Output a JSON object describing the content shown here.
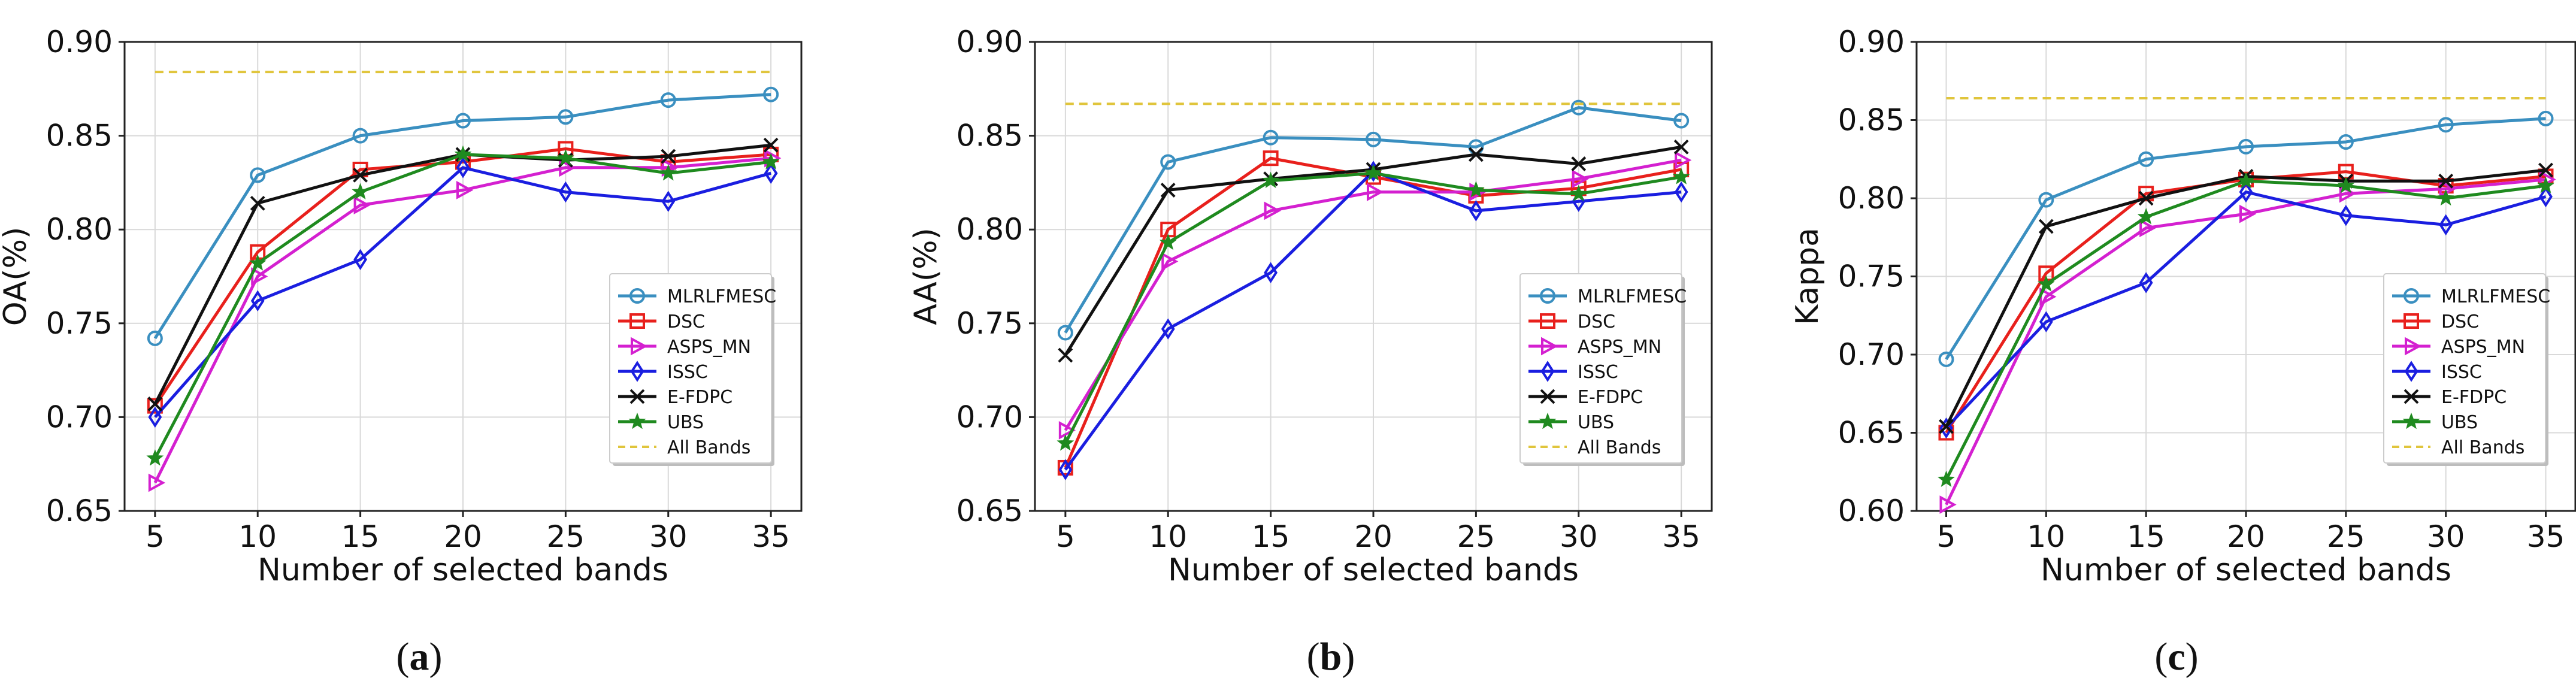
{
  "figure": {
    "series_styles": [
      {
        "name": "MLRLFMESC",
        "color": "#3a8fc0",
        "marker": "circle"
      },
      {
        "name": "DSC",
        "color": "#e8201c",
        "marker": "square"
      },
      {
        "name": "ASPS_MN",
        "color": "#d420d0",
        "marker": "tri-right"
      },
      {
        "name": "ISSC",
        "color": "#1a1ee0",
        "marker": "diamond"
      },
      {
        "name": "E-FDPC",
        "color": "#111111",
        "marker": "x"
      },
      {
        "name": "UBS",
        "color": "#1f8a1f",
        "marker": "star"
      },
      {
        "name": "All Bands",
        "color": "#e0c53c",
        "marker": "dashed"
      }
    ]
  },
  "chart_data": [
    {
      "type": "line",
      "caption": "(a)",
      "caption_letter": "a",
      "xlabel": "Number of selected bands",
      "ylabel": "OA(%)",
      "x": [
        5,
        10,
        15,
        20,
        25,
        30,
        35
      ],
      "x_ticks": [
        "5",
        "10",
        "15",
        "20",
        "25",
        "30",
        "35"
      ],
      "ylim": [
        0.65,
        0.9
      ],
      "y_ticks": [
        "0.65",
        "0.70",
        "0.75",
        "0.80",
        "0.85",
        "0.90"
      ],
      "grid": true,
      "legend_position": "lower-right",
      "series": [
        {
          "name": "MLRLFMESC",
          "values": [
            0.742,
            0.829,
            0.85,
            0.858,
            0.86,
            0.869,
            0.872
          ]
        },
        {
          "name": "DSC",
          "values": [
            0.706,
            0.788,
            0.832,
            0.836,
            0.843,
            0.836,
            0.84
          ]
        },
        {
          "name": "ASPS_MN",
          "values": [
            0.665,
            0.775,
            0.813,
            0.821,
            0.833,
            0.833,
            0.838
          ]
        },
        {
          "name": "ISSC",
          "values": [
            0.7,
            0.762,
            0.784,
            0.833,
            0.82,
            0.815,
            0.83
          ]
        },
        {
          "name": "E-FDPC",
          "values": [
            0.707,
            0.814,
            0.829,
            0.84,
            0.837,
            0.839,
            0.845
          ]
        },
        {
          "name": "UBS",
          "values": [
            0.678,
            0.782,
            0.82,
            0.84,
            0.838,
            0.83,
            0.836
          ]
        },
        {
          "name": "All Bands",
          "values": [
            0.884,
            0.884,
            0.884,
            0.884,
            0.884,
            0.884,
            0.884
          ]
        }
      ]
    },
    {
      "type": "line",
      "caption": "(b)",
      "caption_letter": "b",
      "xlabel": "Number of selected bands",
      "ylabel": "AA(%)",
      "x": [
        5,
        10,
        15,
        20,
        25,
        30,
        35
      ],
      "x_ticks": [
        "5",
        "10",
        "15",
        "20",
        "25",
        "30",
        "35"
      ],
      "ylim": [
        0.65,
        0.9
      ],
      "y_ticks": [
        "0.65",
        "0.70",
        "0.75",
        "0.80",
        "0.85",
        "0.90"
      ],
      "grid": true,
      "legend_position": "lower-right",
      "series": [
        {
          "name": "MLRLFMESC",
          "values": [
            0.745,
            0.836,
            0.849,
            0.848,
            0.844,
            0.865,
            0.858
          ]
        },
        {
          "name": "DSC",
          "values": [
            0.673,
            0.8,
            0.838,
            0.828,
            0.818,
            0.822,
            0.832
          ]
        },
        {
          "name": "ASPS_MN",
          "values": [
            0.693,
            0.783,
            0.81,
            0.82,
            0.82,
            0.827,
            0.837
          ]
        },
        {
          "name": "ISSC",
          "values": [
            0.672,
            0.747,
            0.777,
            0.831,
            0.81,
            0.815,
            0.82
          ]
        },
        {
          "name": "E-FDPC",
          "values": [
            0.733,
            0.821,
            0.827,
            0.832,
            0.84,
            0.835,
            0.844
          ]
        },
        {
          "name": "UBS",
          "values": [
            0.686,
            0.793,
            0.826,
            0.83,
            0.821,
            0.819,
            0.828
          ]
        },
        {
          "name": "All Bands",
          "values": [
            0.867,
            0.867,
            0.867,
            0.867,
            0.867,
            0.867,
            0.867
          ]
        }
      ]
    },
    {
      "type": "line",
      "caption": "(c)",
      "caption_letter": "c",
      "xlabel": "Number of selected bands",
      "ylabel": "Kappa",
      "x": [
        5,
        10,
        15,
        20,
        25,
        30,
        35
      ],
      "x_ticks": [
        "5",
        "10",
        "15",
        "20",
        "25",
        "30",
        "35"
      ],
      "ylim": [
        0.6,
        0.9
      ],
      "y_ticks": [
        "0.60",
        "0.65",
        "0.70",
        "0.75",
        "0.80",
        "0.85",
        "0.90"
      ],
      "grid": true,
      "legend_position": "lower-right",
      "series": [
        {
          "name": "MLRLFMESC",
          "values": [
            0.697,
            0.799,
            0.825,
            0.833,
            0.836,
            0.847,
            0.851
          ]
        },
        {
          "name": "DSC",
          "values": [
            0.65,
            0.752,
            0.803,
            0.812,
            0.817,
            0.808,
            0.814
          ]
        },
        {
          "name": "ASPS_MN",
          "values": [
            0.604,
            0.737,
            0.781,
            0.79,
            0.803,
            0.806,
            0.812
          ]
        },
        {
          "name": "ISSC",
          "values": [
            0.653,
            0.721,
            0.746,
            0.804,
            0.789,
            0.783,
            0.801
          ]
        },
        {
          "name": "E-FDPC",
          "values": [
            0.654,
            0.782,
            0.8,
            0.814,
            0.811,
            0.811,
            0.818
          ]
        },
        {
          "name": "UBS",
          "values": [
            0.62,
            0.745,
            0.788,
            0.811,
            0.808,
            0.8,
            0.808
          ]
        },
        {
          "name": "All Bands",
          "values": [
            0.864,
            0.864,
            0.864,
            0.864,
            0.864,
            0.864,
            0.864
          ]
        }
      ]
    }
  ]
}
